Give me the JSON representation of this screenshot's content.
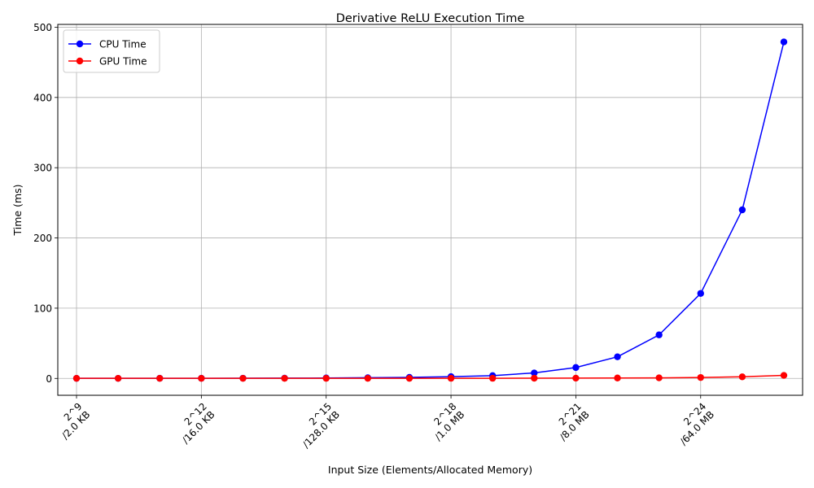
{
  "chart_data": {
    "type": "line",
    "title": "Derivative ReLU Execution Time",
    "xlabel": "Input Size (Elements/Allocated Memory)",
    "ylabel": "Time (ms)",
    "x": [
      9,
      10,
      11,
      12,
      13,
      14,
      15,
      16,
      17,
      18,
      19,
      20,
      21,
      22,
      23,
      24,
      25,
      26
    ],
    "xticks": [
      {
        "x": 9,
        "line1": "2^9",
        "line2": "/2.0 KB"
      },
      {
        "x": 12,
        "line1": "2^12",
        "line2": "/16.0 KB"
      },
      {
        "x": 15,
        "line1": "2^15",
        "line2": "/128.0 KB"
      },
      {
        "x": 18,
        "line1": "2^18",
        "line2": "/1.0 MB"
      },
      {
        "x": 21,
        "line1": "2^21",
        "line2": "/8.0 MB"
      },
      {
        "x": 24,
        "line1": "2^24",
        "line2": "/64.0 MB"
      }
    ],
    "yticks": [
      0,
      100,
      200,
      300,
      400,
      500
    ],
    "xlim": [
      8.55,
      26.45
    ],
    "ylim": [
      -24,
      504
    ],
    "grid": true,
    "legend_position": "top-left",
    "series": [
      {
        "name": "CPU Time",
        "color": "#0000ff",
        "values": [
          0.1,
          0.1,
          0.2,
          0.2,
          0.3,
          0.4,
          0.6,
          1.0,
          1.5,
          2.5,
          4.0,
          7.8,
          15.5,
          30.8,
          62.0,
          121.0,
          240.0,
          479.0
        ]
      },
      {
        "name": "GPU Time",
        "color": "#ff0000",
        "values": [
          0.1,
          0.1,
          0.1,
          0.1,
          0.1,
          0.1,
          0.1,
          0.1,
          0.1,
          0.2,
          0.2,
          0.3,
          0.4,
          0.6,
          0.8,
          1.3,
          2.3,
          4.3
        ]
      }
    ]
  }
}
